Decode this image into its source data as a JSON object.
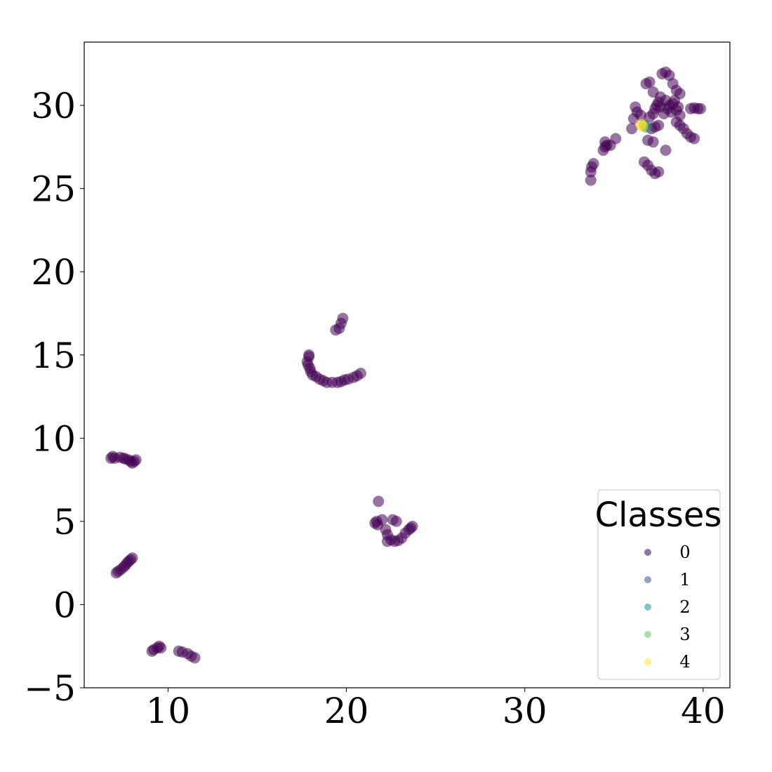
{
  "chart_data": {
    "type": "scatter",
    "title": "",
    "xlabel": "",
    "ylabel": "",
    "xlim": [
      5.3,
      41.5
    ],
    "ylim": [
      -5,
      33.8
    ],
    "xticks": [
      10,
      20,
      30,
      40
    ],
    "yticks": [
      -5,
      0,
      5,
      10,
      15,
      20,
      25,
      30
    ],
    "xtick_labels": [
      "10",
      "20",
      "30",
      "40"
    ],
    "ytick_labels": [
      "−5",
      "0",
      "5",
      "10",
      "15",
      "20",
      "25",
      "30"
    ],
    "grid": false,
    "legend": {
      "title": "Classes",
      "placement": "lower-right",
      "entries": [
        {
          "label": "0",
          "color": "#440154"
        },
        {
          "label": "1",
          "color": "#3b528b"
        },
        {
          "label": "2",
          "color": "#21918c"
        },
        {
          "label": "3",
          "color": "#5ec962"
        },
        {
          "label": "4",
          "color": "#fde725"
        }
      ]
    },
    "series": [
      {
        "class": "0",
        "color": "#440154",
        "points": [
          [
            6.8,
            8.8
          ],
          [
            6.9,
            8.9
          ],
          [
            7.0,
            8.8
          ],
          [
            7.3,
            8.85
          ],
          [
            7.5,
            8.8
          ],
          [
            7.6,
            8.75
          ],
          [
            7.8,
            8.7
          ],
          [
            7.9,
            8.6
          ],
          [
            8.0,
            8.5
          ],
          [
            8.1,
            8.6
          ],
          [
            8.2,
            8.7
          ],
          [
            7.1,
            1.9
          ],
          [
            7.2,
            2.0
          ],
          [
            7.35,
            2.1
          ],
          [
            7.5,
            2.25
          ],
          [
            7.6,
            2.35
          ],
          [
            7.7,
            2.5
          ],
          [
            7.8,
            2.6
          ],
          [
            7.9,
            2.7
          ],
          [
            8.0,
            2.8
          ],
          [
            9.1,
            -2.8
          ],
          [
            9.2,
            -2.7
          ],
          [
            9.4,
            -2.6
          ],
          [
            9.5,
            -2.5
          ],
          [
            9.6,
            -2.6
          ],
          [
            10.6,
            -2.8
          ],
          [
            10.8,
            -2.85
          ],
          [
            11.1,
            -2.95
          ],
          [
            11.3,
            -3.1
          ],
          [
            11.5,
            -3.2
          ],
          [
            17.8,
            14.6
          ],
          [
            17.9,
            14.9
          ],
          [
            17.9,
            15.0
          ],
          [
            17.85,
            14.4
          ],
          [
            17.95,
            14.2
          ],
          [
            18.0,
            14.0
          ],
          [
            18.1,
            13.8
          ],
          [
            18.3,
            13.7
          ],
          [
            18.5,
            13.55
          ],
          [
            18.7,
            13.45
          ],
          [
            18.9,
            13.35
          ],
          [
            19.2,
            13.35
          ],
          [
            19.5,
            13.35
          ],
          [
            19.7,
            13.4
          ],
          [
            19.9,
            13.5
          ],
          [
            20.1,
            13.55
          ],
          [
            20.4,
            13.65
          ],
          [
            20.6,
            13.75
          ],
          [
            20.8,
            13.9
          ],
          [
            19.4,
            16.5
          ],
          [
            19.6,
            16.6
          ],
          [
            19.7,
            16.9
          ],
          [
            19.8,
            17.2
          ],
          [
            21.8,
            6.2
          ],
          [
            21.7,
            5.0
          ],
          [
            21.75,
            4.8
          ],
          [
            21.6,
            4.9
          ],
          [
            22.0,
            5.1
          ],
          [
            22.2,
            4.5
          ],
          [
            22.3,
            4.2
          ],
          [
            22.5,
            3.9
          ],
          [
            22.7,
            3.8
          ],
          [
            22.9,
            3.85
          ],
          [
            23.1,
            4.0
          ],
          [
            23.3,
            4.3
          ],
          [
            23.5,
            4.5
          ],
          [
            23.6,
            4.6
          ],
          [
            23.7,
            4.7
          ],
          [
            22.6,
            5.1
          ],
          [
            22.8,
            5.0
          ],
          [
            22.3,
            3.8
          ],
          [
            33.7,
            25.5
          ],
          [
            33.7,
            26.0
          ],
          [
            33.75,
            26.3
          ],
          [
            33.85,
            26.5
          ],
          [
            34.4,
            27.3
          ],
          [
            34.5,
            27.5
          ],
          [
            34.6,
            27.6
          ],
          [
            34.8,
            27.6
          ],
          [
            34.5,
            27.8
          ],
          [
            35.1,
            28.0
          ],
          [
            36.0,
            28.6
          ],
          [
            36.1,
            29.2
          ],
          [
            36.3,
            29.6
          ],
          [
            36.2,
            29.9
          ],
          [
            36.5,
            29.4
          ],
          [
            36.7,
            26.6
          ],
          [
            36.9,
            26.4
          ],
          [
            37.1,
            26.1
          ],
          [
            37.3,
            25.9
          ],
          [
            37.5,
            26.0
          ],
          [
            36.9,
            27.9
          ],
          [
            37.2,
            27.8
          ],
          [
            37.1,
            28.6
          ],
          [
            37.3,
            28.7
          ],
          [
            37.5,
            28.8
          ],
          [
            37.9,
            27.3
          ],
          [
            36.8,
            31.3
          ],
          [
            37.0,
            31.4
          ],
          [
            37.2,
            30.8
          ],
          [
            37.5,
            30.2
          ],
          [
            37.6,
            29.9
          ],
          [
            37.8,
            29.5
          ],
          [
            38.0,
            29.8
          ],
          [
            38.1,
            30.0
          ],
          [
            38.3,
            30.1
          ],
          [
            38.4,
            30.3
          ],
          [
            38.6,
            29.9
          ],
          [
            37.7,
            31.9
          ],
          [
            37.9,
            32.0
          ],
          [
            38.1,
            31.8
          ],
          [
            38.3,
            31.3
          ],
          [
            38.5,
            30.9
          ],
          [
            38.7,
            30.7
          ],
          [
            37.4,
            30.0
          ],
          [
            37.2,
            29.5
          ],
          [
            37.0,
            29.3
          ],
          [
            37.3,
            29.8
          ],
          [
            37.6,
            30.5
          ],
          [
            37.9,
            30.3
          ],
          [
            38.2,
            29.6
          ],
          [
            38.5,
            29.7
          ],
          [
            38.7,
            29.4
          ],
          [
            38.5,
            29.0
          ],
          [
            38.7,
            28.8
          ],
          [
            38.9,
            28.6
          ],
          [
            39.1,
            28.3
          ],
          [
            39.3,
            28.1
          ],
          [
            39.5,
            28.0
          ],
          [
            39.3,
            29.8
          ],
          [
            39.5,
            29.85
          ],
          [
            39.7,
            29.8
          ],
          [
            39.85,
            29.8
          ]
        ]
      },
      {
        "class": "1",
        "color": "#3b528b",
        "points": [
          [
            36.7,
            28.8
          ]
        ]
      },
      {
        "class": "2",
        "color": "#21918c",
        "points": [
          [
            36.8,
            28.7
          ]
        ]
      },
      {
        "class": "4",
        "color": "#fde725",
        "points": [
          [
            36.5,
            28.85
          ],
          [
            36.6,
            28.75
          ]
        ]
      }
    ]
  }
}
